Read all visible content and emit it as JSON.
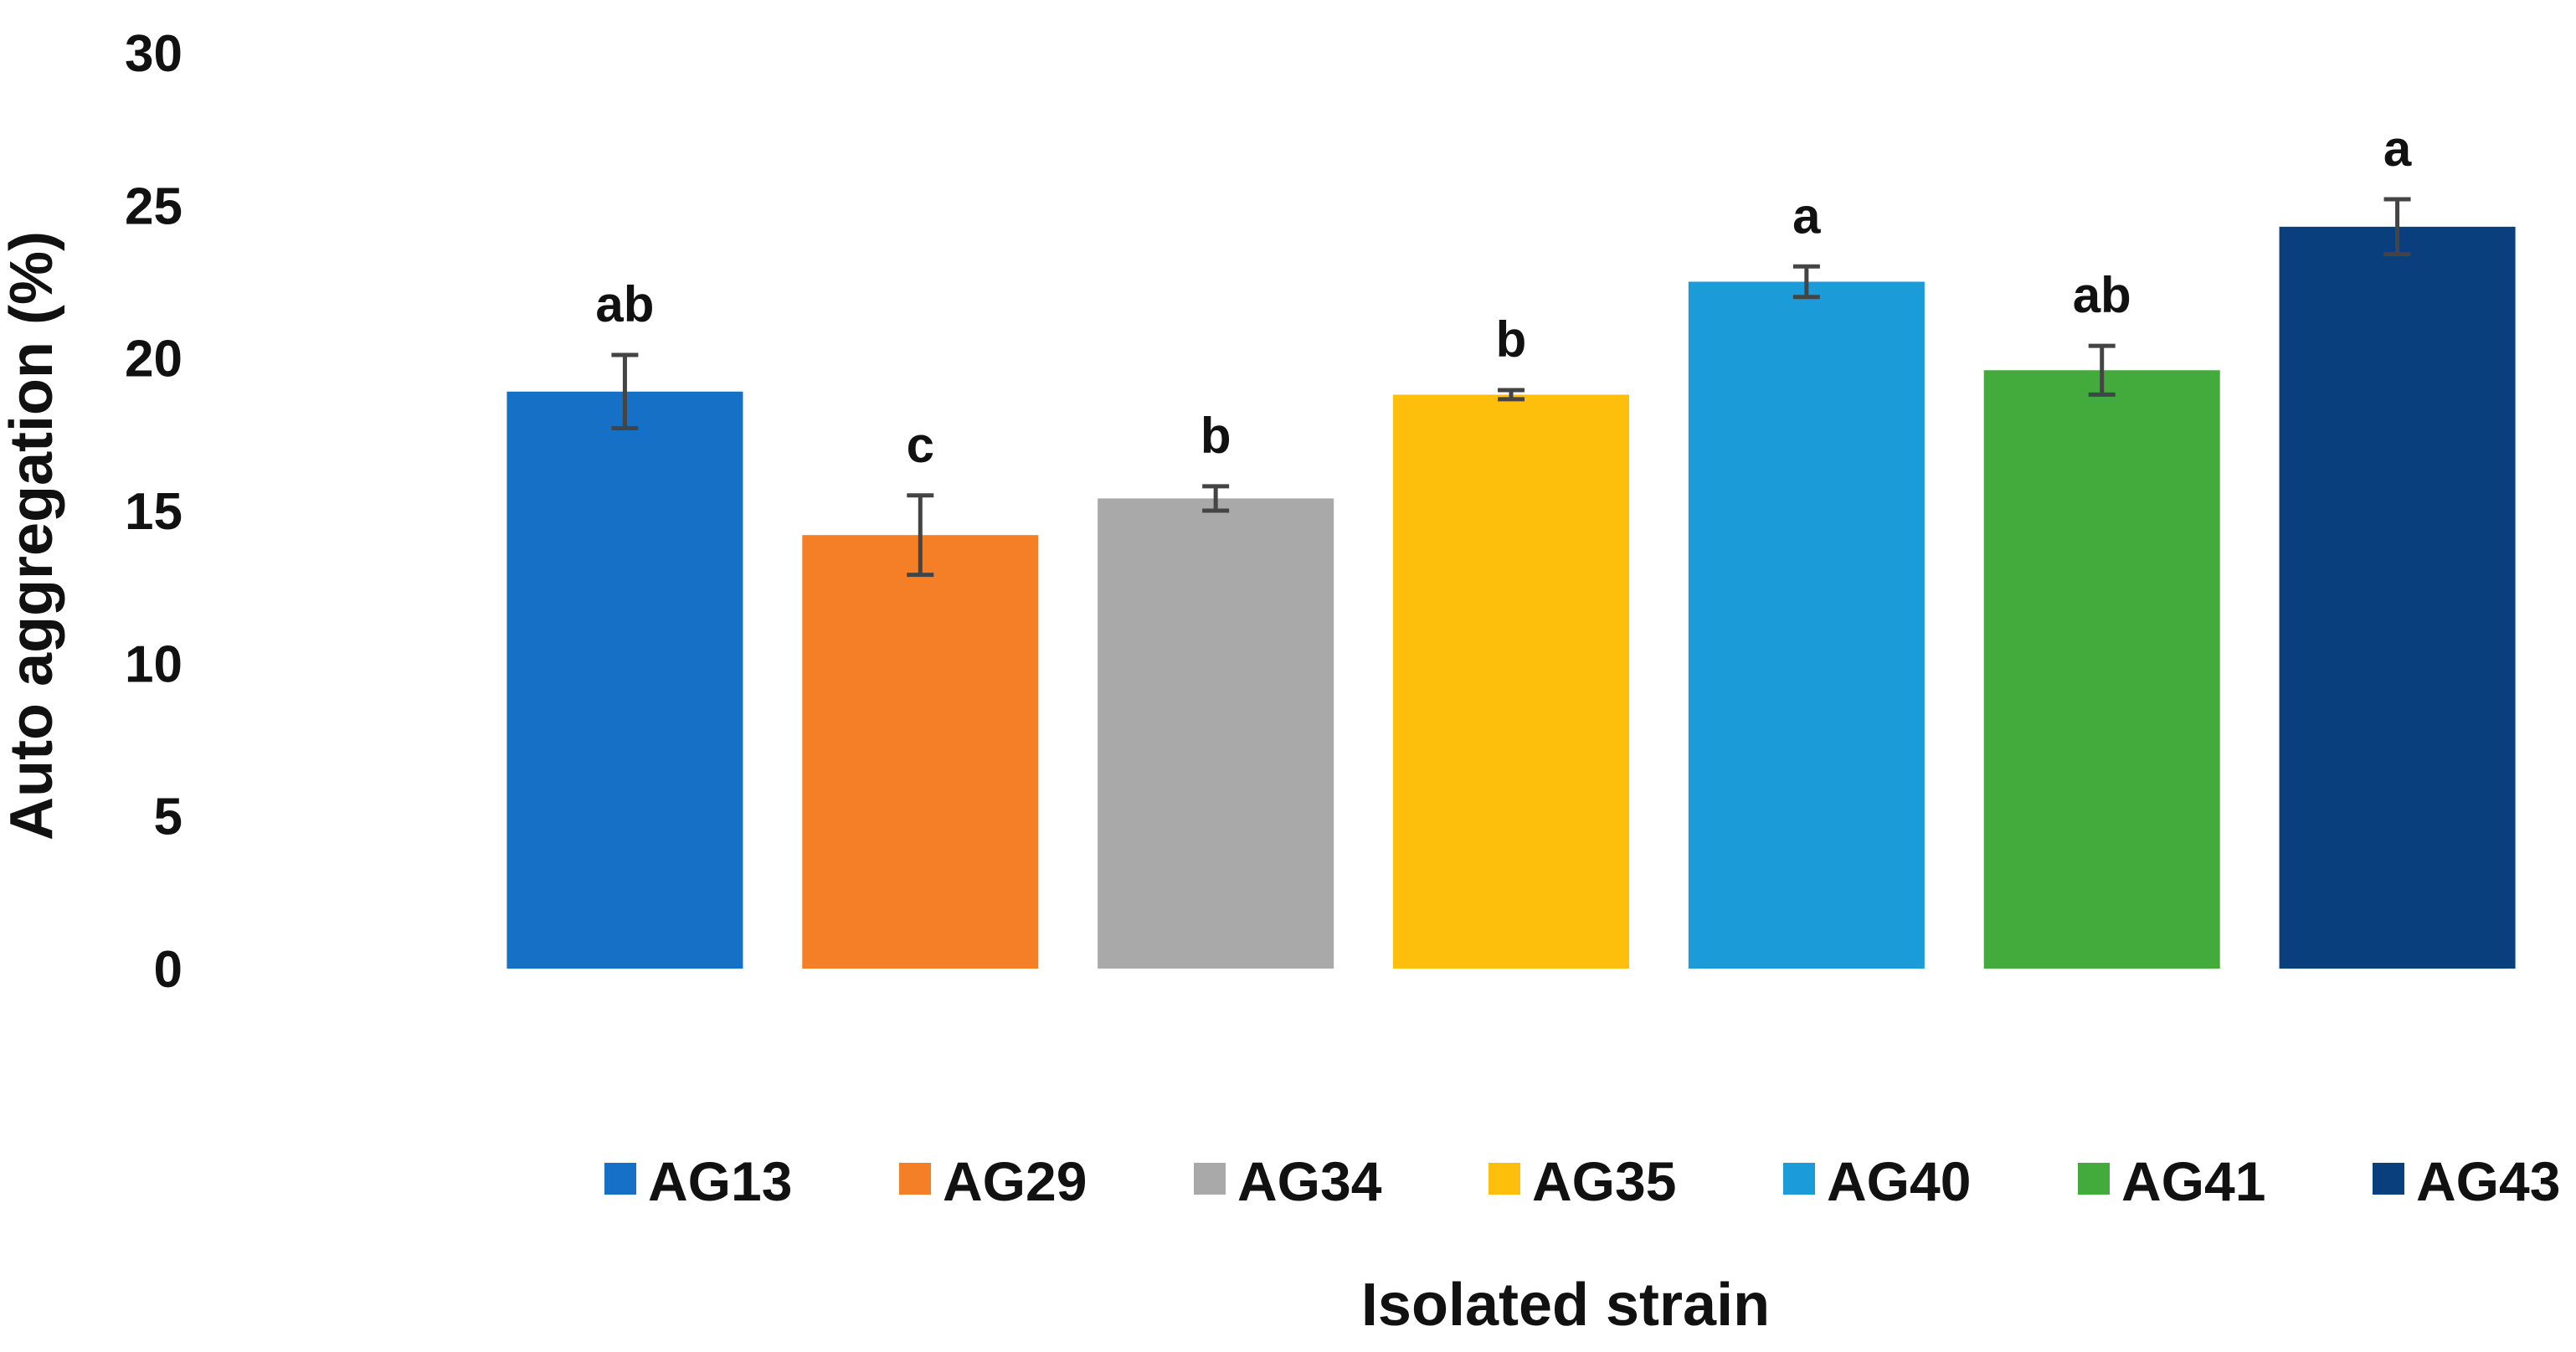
{
  "chart_data": {
    "type": "bar",
    "title": "",
    "xlabel": "Isolated strain",
    "ylabel": "Auto aggregation (%)",
    "ylim": [
      0,
      30
    ],
    "yticks": [
      0,
      5,
      10,
      15,
      20,
      25,
      30
    ],
    "grid": false,
    "legend_position": "bottom",
    "categories": [
      "AG13",
      "AG29",
      "AG34",
      "AG35",
      "AG40",
      "AG41",
      "AG43"
    ],
    "values": [
      18.9,
      14.2,
      15.4,
      18.8,
      22.5,
      19.6,
      24.3
    ],
    "errors": [
      1.2,
      1.3,
      0.4,
      0.15,
      0.5,
      0.8,
      0.9
    ],
    "significance": [
      "ab",
      "c",
      "b",
      "b",
      "a",
      "ab",
      "a"
    ],
    "colors": [
      "#1670c6",
      "#f57f26",
      "#a9a9a9",
      "#fdbf0c",
      "#1b9bd8",
      "#42ab3b",
      "#0a3f7d"
    ]
  }
}
